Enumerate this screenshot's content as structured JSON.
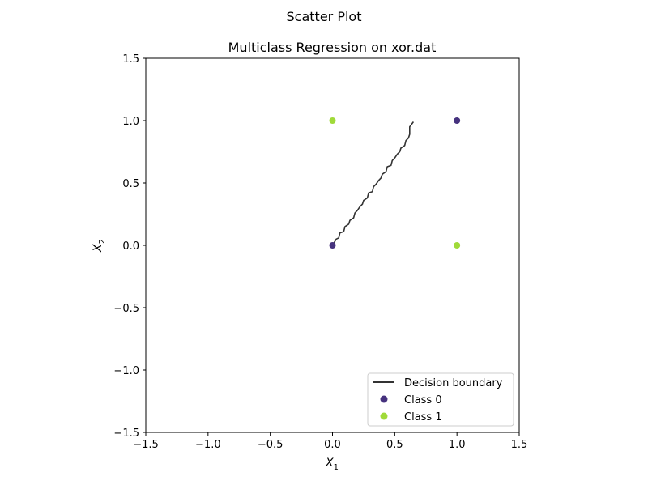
{
  "figure": {
    "suptitle": "Scatter Plot"
  },
  "chart_data": {
    "type": "scatter",
    "title": "Multiclass Regression on xor.dat",
    "xlabel": {
      "base": "X",
      "sub": "1"
    },
    "ylabel": {
      "base": "X",
      "sub": "2"
    },
    "xlim": [
      -1.5,
      1.5
    ],
    "ylim": [
      -1.5,
      1.5
    ],
    "xticks": [
      -1.5,
      -1.0,
      -0.5,
      0.0,
      0.5,
      1.0,
      1.5
    ],
    "yticks": [
      -1.5,
      -1.0,
      -0.5,
      0.0,
      0.5,
      1.0,
      1.5
    ],
    "xtick_labels": [
      "−1.5",
      "−1.0",
      "−0.5",
      "0.0",
      "0.5",
      "1.0",
      "1.5"
    ],
    "ytick_labels": [
      "−1.5",
      "−1.0",
      "−0.5",
      "0.0",
      "0.5",
      "1.0",
      "1.5"
    ],
    "grid": false,
    "legend_position": "lower-right",
    "series": [
      {
        "name": "Decision boundary",
        "kind": "line",
        "color": "#333333",
        "points": [
          [
            0.0,
            0.0
          ],
          [
            0.03,
            0.05
          ],
          [
            0.05,
            0.06
          ],
          [
            0.06,
            0.1
          ],
          [
            0.09,
            0.11
          ],
          [
            0.1,
            0.15
          ],
          [
            0.13,
            0.17
          ],
          [
            0.14,
            0.2
          ],
          [
            0.17,
            0.22
          ],
          [
            0.18,
            0.26
          ],
          [
            0.2,
            0.28
          ],
          [
            0.22,
            0.31
          ],
          [
            0.24,
            0.33
          ],
          [
            0.25,
            0.36
          ],
          [
            0.28,
            0.38
          ],
          [
            0.29,
            0.42
          ],
          [
            0.32,
            0.43
          ],
          [
            0.33,
            0.47
          ],
          [
            0.35,
            0.49
          ],
          [
            0.37,
            0.52
          ],
          [
            0.39,
            0.54
          ],
          [
            0.4,
            0.57
          ],
          [
            0.43,
            0.59
          ],
          [
            0.44,
            0.63
          ],
          [
            0.47,
            0.64
          ],
          [
            0.48,
            0.68
          ],
          [
            0.5,
            0.7
          ],
          [
            0.52,
            0.73
          ],
          [
            0.54,
            0.75
          ],
          [
            0.55,
            0.78
          ],
          [
            0.58,
            0.8
          ],
          [
            0.59,
            0.84
          ],
          [
            0.61,
            0.86
          ],
          [
            0.62,
            0.89
          ],
          [
            0.62,
            0.95
          ],
          [
            0.65,
            0.99
          ]
        ]
      },
      {
        "name": "Class 0",
        "kind": "scatter",
        "color": "#46327e",
        "points": [
          [
            0.0,
            0.0
          ],
          [
            1.0,
            1.0
          ]
        ]
      },
      {
        "name": "Class 1",
        "kind": "scatter",
        "color": "#a0da39",
        "points": [
          [
            0.0,
            1.0
          ],
          [
            1.0,
            0.0
          ]
        ]
      }
    ]
  }
}
